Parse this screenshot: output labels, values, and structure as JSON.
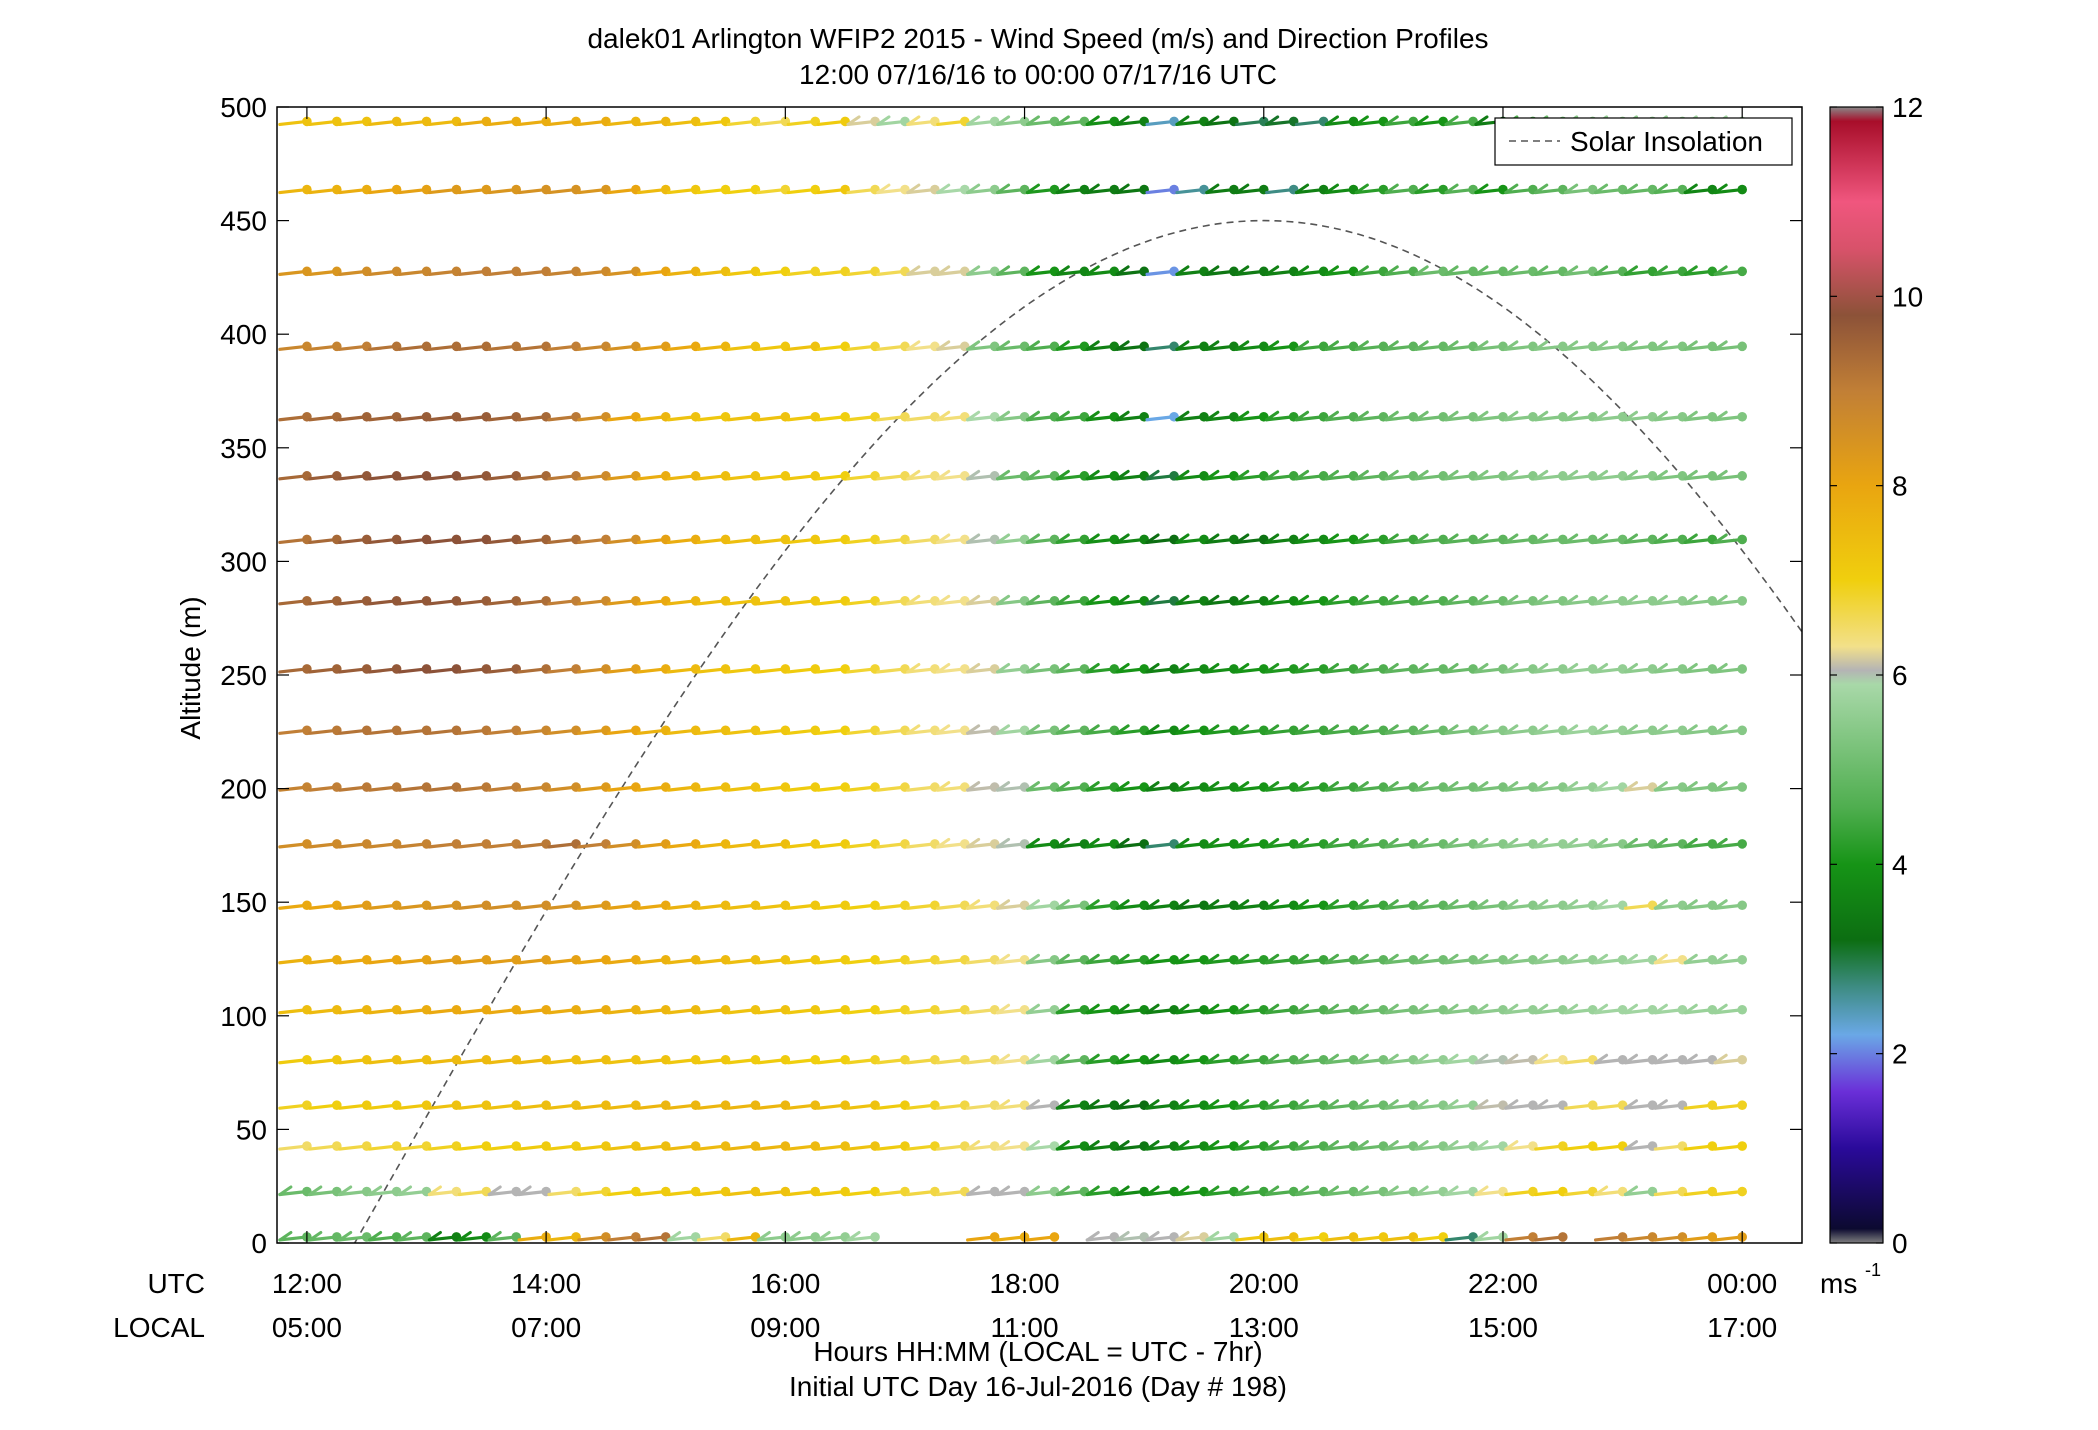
{
  "chart_data": {
    "type": "wind-barb-profile",
    "title": "dalek01 Arlington WFIP2 2015 - Wind Speed (m/s) and Direction Profiles",
    "subtitle": "12:00 07/16/16 to 00:00 07/17/16  UTC",
    "ylabel": "Altitude (m)",
    "xlabel": "Hours HH:MM  (LOCAL = UTC - 7hr)",
    "xlabel2": "Initial UTC Day 16-Jul-2016 (Day # 198)",
    "row_label_utc": "UTC",
    "row_label_local": "LOCAL",
    "ylim": [
      0,
      500
    ],
    "y_ticks": [
      "0",
      "50",
      "100",
      "150",
      "200",
      "250",
      "300",
      "350",
      "400",
      "450",
      "500"
    ],
    "x_range_hours": [
      11.75,
      24.5
    ],
    "x_ticks_utc": [
      "12:00",
      "14:00",
      "16:00",
      "18:00",
      "20:00",
      "22:00",
      "00:00"
    ],
    "x_ticks_local": [
      "05:00",
      "07:00",
      "09:00",
      "11:00",
      "13:00",
      "15:00",
      "17:00"
    ],
    "x_tick_hours": [
      12,
      14,
      16,
      18,
      20,
      22,
      24
    ],
    "legend": {
      "label": "Solar Insolation",
      "position": "top-right",
      "line_style": "dashed",
      "color": "#555555"
    },
    "colorbar": {
      "units": "ms",
      "units_exponent": "-1",
      "range": [
        0,
        12
      ],
      "tick_labels": [
        "0",
        "2",
        "4",
        "6",
        "8",
        "10",
        "12"
      ],
      "stops": [
        {
          "v": 0.0,
          "color": "#7f7f7f"
        },
        {
          "v": 0.15,
          "color": "#0c0a30"
        },
        {
          "v": 1.0,
          "color": "#2a0a9a"
        },
        {
          "v": 1.6,
          "color": "#6a2fd8"
        },
        {
          "v": 2.2,
          "color": "#6aa8e6"
        },
        {
          "v": 2.7,
          "color": "#3e8c84"
        },
        {
          "v": 3.2,
          "color": "#0c6e12"
        },
        {
          "v": 4.0,
          "color": "#169416"
        },
        {
          "v": 4.6,
          "color": "#4fae4f"
        },
        {
          "v": 5.9,
          "color": "#a8d8a8"
        },
        {
          "v": 6.05,
          "color": "#b4b4b4"
        },
        {
          "v": 6.3,
          "color": "#f2e08a"
        },
        {
          "v": 7.0,
          "color": "#f0cf0e"
        },
        {
          "v": 8.0,
          "color": "#e9a510"
        },
        {
          "v": 9.0,
          "color": "#c17f36"
        },
        {
          "v": 9.8,
          "color": "#8c5238"
        },
        {
          "v": 10.5,
          "color": "#d8526a"
        },
        {
          "v": 11.0,
          "color": "#f0567e"
        },
        {
          "v": 11.85,
          "color": "#a80e2a"
        },
        {
          "v": 12.0,
          "color": "#888888"
        }
      ]
    },
    "solar_insolation_curve": {
      "x_hours": [
        12.4,
        20.0,
        24.5
      ],
      "y_altitude": [
        0,
        450,
        260
      ]
    },
    "time_hours": [
      12.0,
      12.25,
      12.5,
      12.75,
      13.0,
      13.25,
      13.5,
      13.75,
      14.0,
      14.25,
      14.5,
      14.75,
      15.0,
      15.25,
      15.5,
      15.75,
      16.0,
      16.25,
      16.5,
      16.75,
      17.0,
      17.25,
      17.5,
      17.75,
      18.0,
      18.25,
      18.5,
      18.75,
      19.0,
      19.25,
      19.5,
      19.75,
      20.0,
      20.25,
      20.5,
      20.75,
      21.0,
      21.25,
      21.5,
      21.75,
      22.0,
      22.25,
      22.5,
      22.75,
      23.0,
      23.25,
      23.5,
      23.75,
      24.0
    ],
    "profiles": [
      {
        "altitude": 493,
        "speed": [
          7.3,
          7.3,
          7.3,
          7.5,
          7.5,
          7.5,
          7.8,
          7.8,
          7.8,
          7.8,
          7.8,
          7.6,
          7.6,
          7.4,
          7.2,
          6.8,
          6.6,
          6.9,
          7.1,
          6.2,
          5.8,
          6.4,
          6.8,
          5.8,
          5.5,
          5.0,
          4.8,
          3.9,
          3.6,
          2.4,
          3.6,
          3.3,
          2.9,
          3.1,
          2.8,
          3.8,
          4.0,
          4.4,
          4.0,
          4.5,
          3.5,
          4.6,
          5.0,
          5.4,
          5.6,
          5.5,
          5.6,
          5.8,
          5.8
        ]
      },
      {
        "altitude": 463,
        "speed": [
          7.6,
          7.7,
          7.8,
          8.0,
          8.1,
          8.3,
          8.3,
          8.4,
          8.5,
          8.5,
          8.4,
          8.0,
          7.5,
          7.2,
          7.0,
          7.0,
          6.8,
          7.0,
          7.2,
          6.6,
          6.3,
          6.2,
          5.9,
          5.5,
          4.8,
          4.1,
          3.6,
          3.5,
          3.4,
          2.0,
          2.6,
          3.5,
          3.5,
          2.7,
          3.6,
          3.8,
          4.2,
          4.6,
          4.2,
          4.7,
          4.0,
          4.6,
          4.8,
          5.2,
          5.0,
          4.9,
          4.7,
          3.7,
          3.8
        ]
      },
      {
        "altitude": 427,
        "speed": [
          8.4,
          8.4,
          8.6,
          8.7,
          8.8,
          8.9,
          9.0,
          9.0,
          9.0,
          8.9,
          8.7,
          8.5,
          8.0,
          7.7,
          7.4,
          7.2,
          7.0,
          6.9,
          6.9,
          6.8,
          6.6,
          6.2,
          6.2,
          5.5,
          4.8,
          4.0,
          3.7,
          3.8,
          3.3,
          2.1,
          3.6,
          3.4,
          3.5,
          3.6,
          3.8,
          4.0,
          4.4,
          4.6,
          5.0,
          4.9,
          4.9,
          5.0,
          4.9,
          5.1,
          4.7,
          4.3,
          4.4,
          4.2,
          4.5
        ]
      },
      {
        "altitude": 394,
        "speed": [
          8.8,
          8.9,
          9.0,
          9.2,
          9.3,
          9.3,
          9.3,
          9.2,
          9.2,
          9.0,
          8.8,
          8.5,
          8.2,
          7.9,
          7.6,
          7.3,
          7.2,
          7.3,
          7.0,
          6.8,
          6.6,
          6.3,
          6.2,
          5.3,
          5.0,
          4.6,
          4.1,
          3.6,
          3.3,
          2.8,
          3.6,
          3.6,
          3.8,
          4.0,
          4.4,
          4.5,
          4.7,
          4.8,
          4.9,
          5.0,
          5.2,
          5.3,
          5.4,
          5.4,
          5.4,
          5.3,
          5.3,
          5.2,
          5.2
        ]
      },
      {
        "altitude": 363,
        "speed": [
          9.3,
          9.4,
          9.5,
          9.5,
          9.6,
          9.6,
          9.6,
          9.5,
          9.4,
          9.1,
          8.6,
          8.0,
          7.6,
          7.3,
          7.2,
          7.3,
          7.3,
          7.2,
          7.0,
          6.9,
          6.6,
          6.5,
          6.4,
          5.9,
          5.4,
          4.6,
          4.4,
          3.9,
          3.6,
          2.2,
          3.6,
          3.7,
          4.0,
          4.2,
          4.4,
          4.6,
          4.8,
          5.0,
          5.1,
          5.2,
          5.3,
          5.4,
          5.4,
          5.4,
          5.5,
          5.5,
          5.4,
          5.3,
          5.3
        ]
      },
      {
        "altitude": 337,
        "speed": [
          9.4,
          9.6,
          9.7,
          9.8,
          9.8,
          9.8,
          9.7,
          9.6,
          9.4,
          9.1,
          8.7,
          8.3,
          7.8,
          7.6,
          7.4,
          7.3,
          7.2,
          7.2,
          7.0,
          6.8,
          6.6,
          6.4,
          6.3,
          6.0,
          5.0,
          4.8,
          4.2,
          3.8,
          3.6,
          3.0,
          3.8,
          4.0,
          4.2,
          4.4,
          4.5,
          4.6,
          4.8,
          5.0,
          5.1,
          5.2,
          5.3,
          5.4,
          5.5,
          5.5,
          5.5,
          5.4,
          5.3,
          5.2,
          5.2
        ]
      },
      {
        "altitude": 309,
        "speed": [
          9.2,
          9.4,
          9.6,
          9.7,
          9.8,
          9.8,
          9.8,
          9.7,
          9.5,
          9.3,
          9.0,
          8.6,
          8.1,
          7.8,
          7.5,
          7.4,
          7.3,
          7.2,
          7.1,
          6.9,
          6.7,
          6.5,
          6.3,
          6.0,
          5.6,
          4.8,
          4.3,
          3.9,
          3.7,
          3.2,
          3.8,
          3.5,
          3.3,
          3.6,
          3.8,
          4.0,
          4.2,
          4.4,
          4.6,
          4.7,
          4.8,
          4.9,
          5.0,
          5.0,
          5.0,
          4.8,
          4.6,
          4.4,
          4.6
        ]
      },
      {
        "altitude": 282,
        "speed": [
          9.4,
          9.5,
          9.6,
          9.7,
          9.7,
          9.7,
          9.6,
          9.5,
          9.3,
          9.0,
          8.7,
          8.3,
          7.9,
          7.6,
          7.4,
          7.3,
          7.3,
          7.2,
          7.1,
          6.9,
          6.6,
          6.4,
          6.3,
          6.2,
          5.4,
          4.8,
          4.4,
          4.0,
          3.8,
          3.0,
          3.6,
          3.4,
          3.6,
          3.8,
          4.0,
          4.2,
          4.4,
          4.5,
          4.6,
          4.8,
          5.0,
          5.2,
          5.3,
          5.4,
          5.5,
          5.5,
          5.5,
          5.4,
          5.4
        ]
      },
      {
        "altitude": 252,
        "speed": [
          9.4,
          9.5,
          9.6,
          9.7,
          9.8,
          9.8,
          9.7,
          9.6,
          9.3,
          9.0,
          8.6,
          8.2,
          7.8,
          7.5,
          7.3,
          7.2,
          7.2,
          7.1,
          7.0,
          6.8,
          6.6,
          6.4,
          6.3,
          6.2,
          5.6,
          5.2,
          4.8,
          4.2,
          4.0,
          3.6,
          3.8,
          3.9,
          4.0,
          4.1,
          4.2,
          4.4,
          4.6,
          4.8,
          4.9,
          5.0,
          5.2,
          5.4,
          5.5,
          5.6,
          5.6,
          5.5,
          5.4,
          5.3,
          5.3
        ]
      },
      {
        "altitude": 225,
        "speed": [
          9.0,
          9.1,
          9.2,
          9.2,
          9.2,
          9.2,
          9.1,
          9.0,
          8.8,
          8.6,
          8.3,
          8.0,
          7.7,
          7.5,
          7.4,
          7.3,
          7.2,
          7.1,
          7.0,
          6.8,
          6.6,
          6.4,
          6.3,
          6.1,
          5.8,
          5.2,
          4.8,
          4.5,
          4.2,
          3.8,
          4.0,
          4.1,
          4.2,
          4.3,
          4.4,
          4.5,
          4.6,
          4.8,
          5.0,
          5.2,
          5.4,
          5.5,
          5.6,
          5.7,
          5.6,
          5.5,
          5.5,
          5.4,
          5.4
        ]
      },
      {
        "altitude": 200,
        "speed": [
          8.9,
          9.0,
          9.1,
          9.1,
          9.2,
          9.2,
          9.1,
          9.0,
          8.8,
          8.6,
          8.3,
          8.0,
          7.8,
          7.6,
          7.4,
          7.3,
          7.2,
          7.1,
          7.0,
          6.9,
          6.7,
          6.5,
          6.4,
          6.1,
          6.0,
          5.0,
          4.6,
          4.2,
          4.0,
          3.6,
          3.8,
          3.9,
          4.0,
          4.1,
          4.2,
          4.4,
          4.6,
          4.8,
          5.0,
          5.1,
          5.2,
          5.3,
          5.4,
          5.6,
          5.8,
          6.2,
          5.4,
          5.3,
          5.3
        ]
      },
      {
        "altitude": 175,
        "speed": [
          8.6,
          8.7,
          8.8,
          8.8,
          8.9,
          9.0,
          9.0,
          9.0,
          9.1,
          9.3,
          9.0,
          8.6,
          8.2,
          7.9,
          7.6,
          7.5,
          7.4,
          7.2,
          7.1,
          6.9,
          6.7,
          6.5,
          6.3,
          6.2,
          6.0,
          3.8,
          3.6,
          3.8,
          3.2,
          2.8,
          3.8,
          3.9,
          4.0,
          4.1,
          4.2,
          4.4,
          4.6,
          4.8,
          5.0,
          5.2,
          5.4,
          5.5,
          5.6,
          5.6,
          5.4,
          5.0,
          4.8,
          4.5,
          4.5
        ]
      },
      {
        "altitude": 148,
        "speed": [
          7.9,
          8.0,
          8.2,
          8.3,
          8.4,
          8.5,
          8.6,
          8.6,
          8.6,
          8.5,
          8.3,
          8.1,
          7.9,
          7.7,
          7.5,
          7.4,
          7.3,
          7.2,
          7.1,
          7.0,
          6.9,
          6.8,
          6.6,
          6.4,
          6.2,
          5.8,
          5.2,
          4.2,
          3.8,
          3.6,
          3.4,
          3.5,
          3.6,
          3.8,
          4.0,
          4.2,
          4.4,
          4.6,
          4.8,
          5.0,
          5.2,
          5.4,
          5.5,
          5.6,
          5.8,
          6.6,
          5.5,
          5.4,
          5.4
        ]
      },
      {
        "altitude": 124,
        "speed": [
          7.7,
          7.8,
          7.9,
          8.0,
          8.1,
          8.2,
          8.2,
          8.2,
          8.2,
          8.1,
          8.0,
          7.9,
          7.7,
          7.6,
          7.5,
          7.4,
          7.3,
          7.2,
          7.1,
          7.0,
          6.9,
          6.8,
          6.7,
          6.5,
          6.3,
          5.4,
          4.8,
          4.4,
          4.2,
          4.0,
          4.0,
          4.1,
          4.2,
          4.3,
          4.4,
          4.6,
          4.8,
          5.0,
          5.1,
          5.2,
          5.3,
          5.4,
          5.5,
          5.6,
          5.7,
          5.8,
          6.3,
          5.6,
          5.6
        ]
      },
      {
        "altitude": 102,
        "speed": [
          7.4,
          7.5,
          7.6,
          7.7,
          7.8,
          7.9,
          7.9,
          7.9,
          7.9,
          7.8,
          7.8,
          7.7,
          7.6,
          7.5,
          7.4,
          7.3,
          7.3,
          7.2,
          7.1,
          7.0,
          6.9,
          6.8,
          6.7,
          6.5,
          6.3,
          5.6,
          4.2,
          4.0,
          3.8,
          3.6,
          3.8,
          4.0,
          4.2,
          4.4,
          4.6,
          4.8,
          5.0,
          5.2,
          5.3,
          5.4,
          5.5,
          5.6,
          5.6,
          5.7,
          5.8,
          5.8,
          5.8,
          5.7,
          5.7
        ]
      },
      {
        "altitude": 80,
        "speed": [
          7.1,
          7.2,
          7.3,
          7.4,
          7.4,
          7.5,
          7.5,
          7.5,
          7.5,
          7.4,
          7.4,
          7.3,
          7.3,
          7.2,
          7.2,
          7.1,
          7.1,
          7.0,
          7.0,
          6.9,
          6.8,
          6.7,
          6.6,
          6.5,
          6.3,
          5.8,
          4.8,
          4.2,
          4.0,
          3.8,
          4.0,
          4.2,
          4.4,
          4.6,
          4.8,
          5.0,
          5.2,
          5.4,
          5.6,
          5.8,
          6.0,
          6.1,
          6.3,
          6.5,
          6.05,
          6.05,
          6.05,
          6.05,
          6.2
        ]
      },
      {
        "altitude": 60,
        "speed": [
          6.9,
          7.0,
          7.1,
          7.1,
          7.2,
          7.3,
          7.3,
          7.3,
          7.4,
          7.4,
          7.5,
          7.5,
          7.6,
          7.6,
          7.6,
          7.6,
          7.6,
          7.5,
          7.4,
          7.3,
          7.1,
          6.9,
          6.7,
          6.5,
          6.4,
          6.05,
          3.6,
          3.4,
          3.2,
          3.6,
          3.8,
          4.0,
          4.2,
          4.4,
          4.6,
          4.8,
          5.0,
          5.2,
          5.4,
          5.6,
          6.1,
          6.05,
          6.05,
          6.6,
          6.6,
          6.05,
          6.05,
          6.9,
          6.9
        ]
      },
      {
        "altitude": 42,
        "speed": [
          6.5,
          6.6,
          6.7,
          6.8,
          6.8,
          6.9,
          7.0,
          7.0,
          7.1,
          7.1,
          7.2,
          7.3,
          7.4,
          7.5,
          7.5,
          7.6,
          7.6,
          7.5,
          7.4,
          7.3,
          7.1,
          6.9,
          6.6,
          6.4,
          6.3,
          5.9,
          3.8,
          3.6,
          3.4,
          3.6,
          3.8,
          4.0,
          4.2,
          4.4,
          4.6,
          4.8,
          5.0,
          5.2,
          5.4,
          5.6,
          5.8,
          6.3,
          6.9,
          7.0,
          7.0,
          6.05,
          6.5,
          7.0,
          7.0
        ]
      },
      {
        "altitude": 22,
        "speed": [
          5.0,
          5.2,
          5.4,
          5.5,
          5.6,
          6.4,
          6.6,
          6.05,
          6.05,
          6.5,
          6.8,
          7.0,
          7.1,
          7.1,
          7.2,
          7.3,
          7.3,
          7.2,
          7.1,
          7.0,
          6.8,
          6.7,
          6.6,
          6.05,
          6.05,
          5.5,
          4.8,
          4.2,
          3.8,
          3.9,
          4.0,
          4.2,
          4.4,
          4.6,
          4.8,
          5.0,
          5.2,
          5.4,
          5.6,
          5.8,
          6.3,
          6.9,
          7.0,
          6.8,
          6.4,
          5.6,
          6.6,
          6.9,
          6.9
        ]
      },
      {
        "altitude": 2,
        "speed": [
          4.8,
          4.9,
          5.0,
          4.6,
          4.8,
          3.6,
          3.8,
          4.8,
          7.8,
          7.6,
          8.6,
          9.0,
          9.2,
          5.8,
          6.5,
          7.6,
          5.5,
          5.5,
          5.6,
          5.8,
          null,
          null,
          null,
          8.0,
          7.8,
          8.0,
          null,
          6.05,
          6.0,
          6.05,
          6.2,
          5.8,
          7.2,
          7.4,
          7.0,
          7.4,
          7.2,
          7.4,
          7.0,
          2.8,
          5.8,
          9.0,
          9.2,
          null,
          9.0,
          8.8,
          8.6,
          8.2,
          8.2
        ]
      }
    ]
  }
}
